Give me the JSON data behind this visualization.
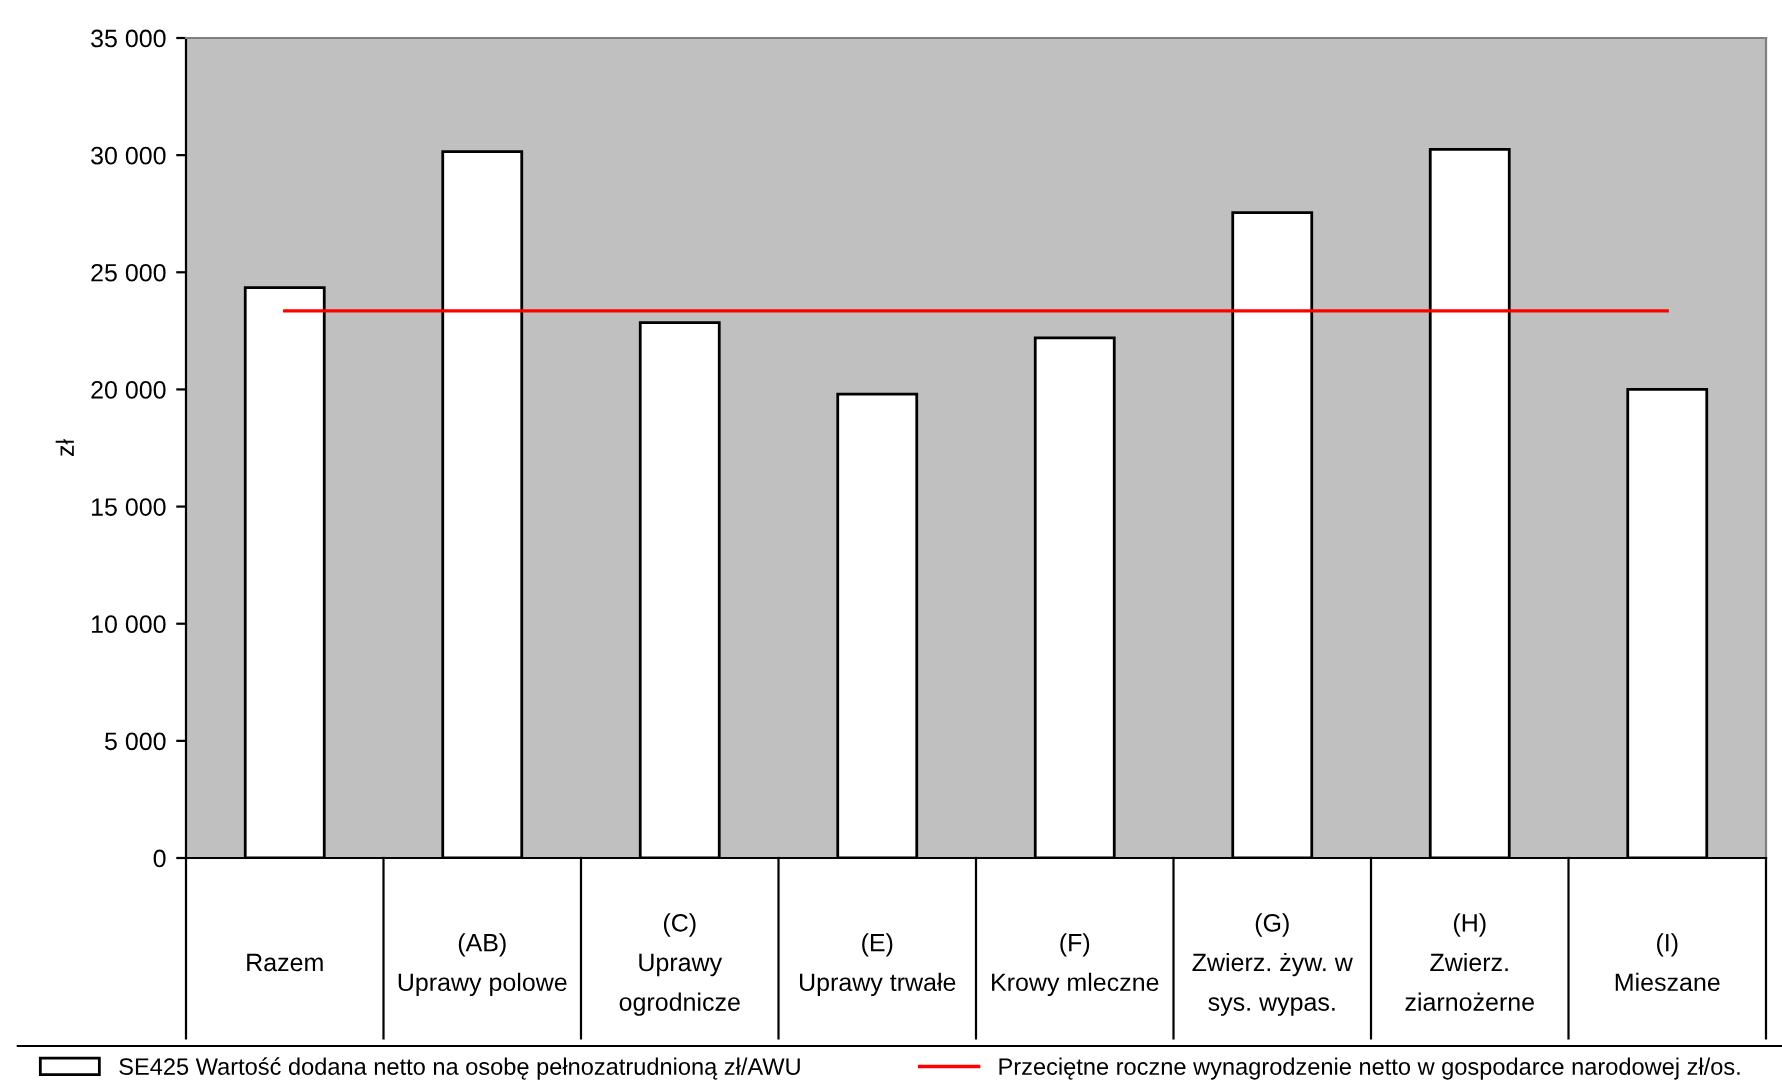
{
  "chart_data": {
    "type": "bar",
    "ylabel": "zł",
    "categories": [
      "Razem",
      "(AB)\nUprawy polowe",
      "(C)\nUprawy\nogrodnicze",
      "(E)\nUprawy trwałe",
      "(F)\nKrowy mleczne",
      "(G)\nZwierz. żyw. w\nsys. wypas.",
      "(H)\nZwierz.\nziarnożerne",
      "(I)\nMieszane"
    ],
    "series": [
      {
        "name": "SE425 Wartość dodana netto na osobę pełnozatrudnioną zł/AWU",
        "color": "#ffffff",
        "values": [
          24350,
          30150,
          22850,
          19800,
          22200,
          27550,
          30250,
          20000
        ]
      },
      {
        "name": "Przeciętne roczne wynagrodzenie netto w gospodarce narodowej zł/os.",
        "type": "line",
        "color": "#ff0000",
        "values": [
          23350,
          23350,
          23350,
          23350,
          23350,
          23350,
          23350,
          23350
        ]
      }
    ],
    "ylim": [
      0,
      35000
    ],
    "yticks": [
      0,
      {
        "value": 5000,
        "label": "5 000"
      },
      {
        "value": 10000,
        "label": "10 000"
      },
      {
        "value": 15000,
        "label": "15 000"
      },
      {
        "value": 20000,
        "label": "20 000"
      },
      {
        "value": 25000,
        "label": "25 000"
      },
      {
        "value": 30000,
        "label": "30 000"
      },
      {
        "value": 35000,
        "label": "35 000"
      }
    ],
    "grid": false,
    "legend": "bottom"
  }
}
